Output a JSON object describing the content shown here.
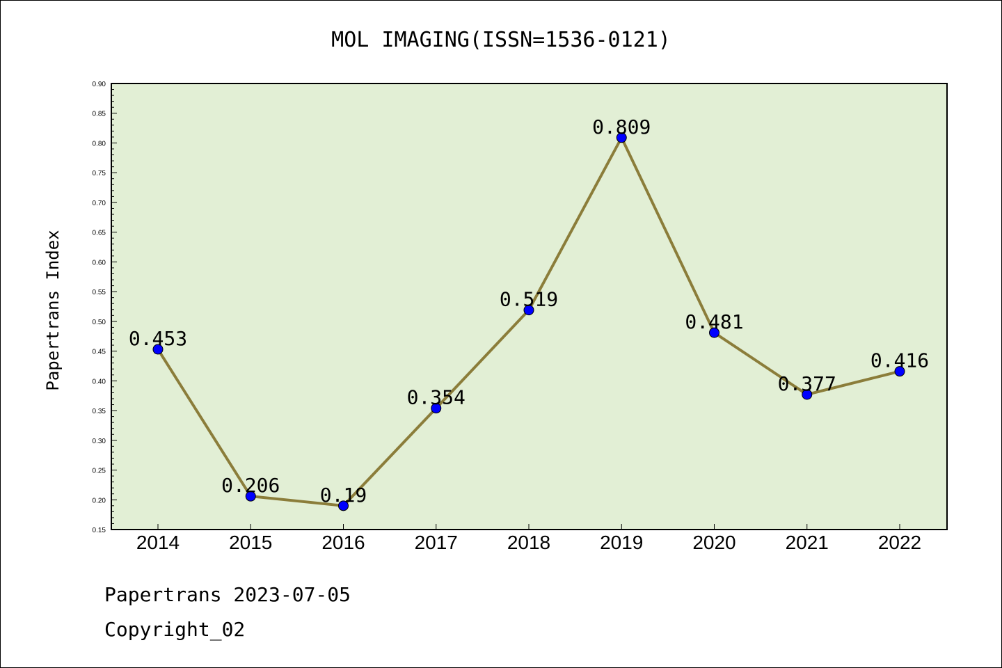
{
  "chart_data": {
    "type": "line",
    "title": "MOL IMAGING(ISSN=1536-0121)",
    "ylabel": "Papertrans Index",
    "xlabel": "",
    "categories": [
      "2014",
      "2015",
      "2016",
      "2017",
      "2018",
      "2019",
      "2020",
      "2021",
      "2022"
    ],
    "values": [
      0.453,
      0.206,
      0.19,
      0.354,
      0.519,
      0.809,
      0.481,
      0.377,
      0.416
    ],
    "data_labels": [
      "0.453",
      "0.206",
      "0.19",
      "0.354",
      "0.519",
      "0.809",
      "0.481",
      "0.377",
      "0.416"
    ],
    "ylim": [
      0.15,
      0.9
    ],
    "yticks": [
      "0.15",
      "0.20",
      "0.25",
      "0.30",
      "0.35",
      "0.40",
      "0.45",
      "0.50",
      "0.55",
      "0.60",
      "0.65",
      "0.70",
      "0.75",
      "0.80",
      "0.85",
      "0.90"
    ],
    "grid": false,
    "colors": {
      "plot_background": "#e2efd5",
      "line": "#8b7d3a",
      "marker": "#0000ff"
    }
  },
  "footer": {
    "line1": "Papertrans 2023-07-05",
    "line2": "Copyright_02"
  }
}
